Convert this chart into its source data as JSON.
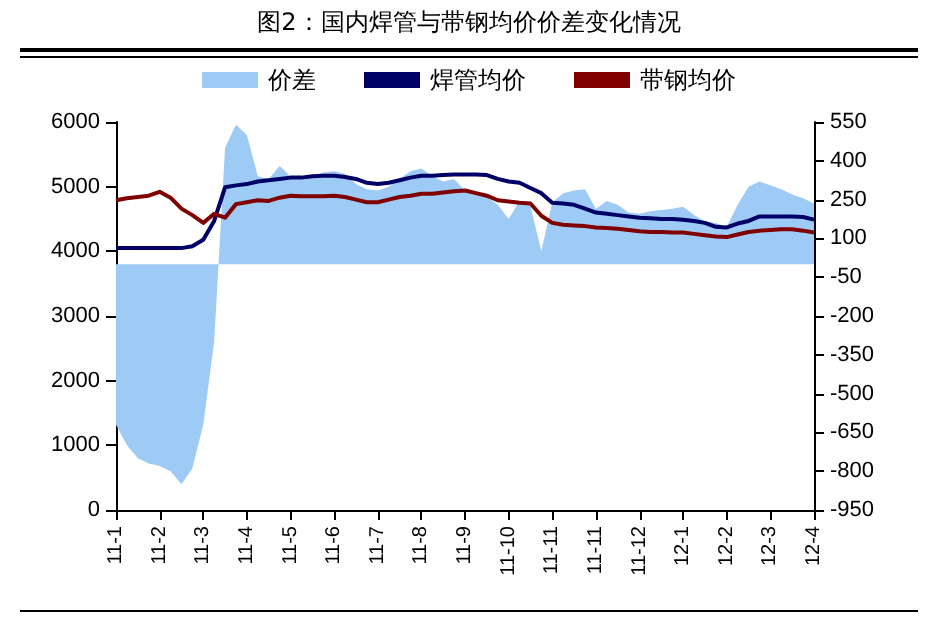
{
  "chart_data": {
    "type": "line",
    "title": "图2：国内焊管与带钢均价价差变化情况",
    "categories": [
      "11-1",
      null,
      null,
      null,
      "11-2",
      null,
      null,
      null,
      "11-3",
      null,
      null,
      null,
      "11-4",
      null,
      null,
      null,
      "11-5",
      null,
      null,
      null,
      "11-6",
      null,
      null,
      null,
      "11-7",
      null,
      null,
      null,
      "11-8",
      null,
      null,
      null,
      "11-9",
      null,
      null,
      null,
      "11-10",
      null,
      null,
      null,
      "11-11",
      null,
      null,
      null,
      "11-11",
      null,
      null,
      null,
      "11-12",
      null,
      null,
      null,
      "12-1",
      null,
      null,
      null,
      "12-2",
      null,
      null,
      null,
      "12-3",
      null,
      null,
      null,
      "12-4"
    ],
    "series": [
      {
        "name": "价差",
        "type": "area",
        "axis": "y2",
        "color": "#9ecbf5",
        "values": [
          -620,
          -700,
          -750,
          -770,
          -780,
          -800,
          -850,
          -790,
          -620,
          -300,
          450,
          540,
          500,
          340,
          330,
          380,
          340,
          330,
          340,
          355,
          360,
          350,
          310,
          290,
          285,
          300,
          330,
          360,
          370,
          340,
          320,
          330,
          285,
          275,
          260,
          230,
          175,
          245,
          225,
          50,
          240,
          275,
          285,
          290,
          215,
          245,
          230,
          200,
          195,
          205,
          210,
          215,
          222,
          190,
          165,
          160,
          145,
          230,
          300,
          320,
          305,
          290,
          270,
          255,
          235
        ]
      },
      {
        "name": "焊管均价",
        "color": "#000066",
        "values": [
          4050,
          4050,
          4050,
          4050,
          4050,
          4050,
          4050,
          4080,
          4180,
          4470,
          4990,
          5020,
          5040,
          5080,
          5100,
          5120,
          5140,
          5140,
          5160,
          5170,
          5170,
          5150,
          5120,
          5060,
          5040,
          5060,
          5100,
          5140,
          5170,
          5170,
          5180,
          5190,
          5190,
          5190,
          5180,
          5120,
          5080,
          5060,
          4980,
          4900,
          4750,
          4740,
          4720,
          4660,
          4600,
          4580,
          4560,
          4540,
          4520,
          4510,
          4500,
          4500,
          4490,
          4470,
          4440,
          4380,
          4370,
          4430,
          4470,
          4540,
          4540,
          4540,
          4540,
          4530,
          4490
        ]
      },
      {
        "name": "带钢均价",
        "color": "#800000",
        "values": [
          4790,
          4820,
          4840,
          4860,
          4920,
          4830,
          4660,
          4560,
          4440,
          4580,
          4520,
          4730,
          4760,
          4790,
          4780,
          4830,
          4860,
          4850,
          4850,
          4850,
          4860,
          4840,
          4800,
          4760,
          4760,
          4800,
          4840,
          4860,
          4890,
          4890,
          4910,
          4930,
          4940,
          4900,
          4860,
          4790,
          4770,
          4750,
          4740,
          4550,
          4440,
          4410,
          4400,
          4390,
          4370,
          4360,
          4350,
          4330,
          4310,
          4300,
          4300,
          4290,
          4290,
          4270,
          4250,
          4230,
          4220,
          4260,
          4300,
          4320,
          4330,
          4340,
          4340,
          4320,
          4290
        ]
      }
    ],
    "ylim": [
      0,
      6000
    ],
    "yticks": [
      0,
      1000,
      2000,
      3000,
      4000,
      5000,
      6000
    ],
    "y2lim": [
      -950,
      550
    ],
    "y2ticks": [
      -950,
      -800,
      -650,
      -500,
      -350,
      -200,
      -50,
      100,
      250,
      400,
      550
    ],
    "grid": false,
    "legend": "top",
    "marker": "none",
    "line_style": "solid"
  }
}
